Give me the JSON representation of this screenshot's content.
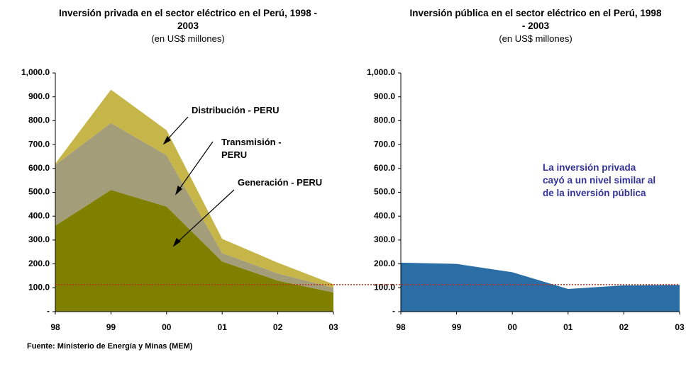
{
  "chart_data": [
    {
      "type": "stacked_area",
      "title": "Inversión privada en el sector eléctrico en el Perú, 1998 - 2003",
      "subtitle": "(en US$ millones)",
      "categories": [
        "98",
        "99",
        "00",
        "01",
        "02",
        "03"
      ],
      "series": [
        {
          "name": "Generación - PERU",
          "color": "#808000",
          "values": [
            360,
            510,
            440,
            210,
            130,
            80
          ]
        },
        {
          "name": "Transmisión - PERU",
          "color": "#a39d7a",
          "values": [
            255,
            280,
            215,
            35,
            30,
            20
          ]
        },
        {
          "name": "Distribución - PERU",
          "color": "#c6b64a",
          "values": [
            5,
            140,
            105,
            60,
            45,
            15
          ]
        }
      ],
      "ylim": [
        0,
        1000
      ],
      "yticks": [
        {
          "value": 0,
          "label": "-"
        },
        {
          "value": 100,
          "label": "100.0"
        },
        {
          "value": 200,
          "label": "200.0"
        },
        {
          "value": 300,
          "label": "300.0"
        },
        {
          "value": 400,
          "label": "400.0"
        },
        {
          "value": 500,
          "label": "500.0"
        },
        {
          "value": 600,
          "label": "600.0"
        },
        {
          "value": 700,
          "label": "700.0"
        },
        {
          "value": 800,
          "label": "800.0"
        },
        {
          "value": 900,
          "label": "900.0"
        },
        {
          "value": 1000,
          "label": "1,000.0"
        }
      ]
    },
    {
      "type": "area",
      "title": "Inversión pública en el sector eléctrico en el Perú, 1998 - 2003",
      "subtitle": "(en US$ millones)",
      "categories": [
        "98",
        "99",
        "00",
        "01",
        "02",
        "03"
      ],
      "color": "#2b6ea6",
      "values": [
        205,
        200,
        165,
        95,
        110,
        112
      ],
      "ylim": [
        0,
        1000
      ],
      "yticks": [
        {
          "value": 0,
          "label": "-"
        },
        {
          "value": 100,
          "label": "100.0"
        },
        {
          "value": 200,
          "label": "200.0"
        },
        {
          "value": 300,
          "label": "300.0"
        },
        {
          "value": 400,
          "label": "400.0"
        },
        {
          "value": 500,
          "label": "500.0"
        },
        {
          "value": 600,
          "label": "600.0"
        },
        {
          "value": 700,
          "label": "700.0"
        },
        {
          "value": 800,
          "label": "800.0"
        },
        {
          "value": 900,
          "label": "900.0"
        },
        {
          "value": 1000,
          "label": "1,000.0"
        }
      ],
      "annotation": "La inversión privada cayó a un nivel similar al de la inversión pública"
    }
  ],
  "reference_value": 113,
  "source": "Fuente: Ministerio de Energía y Minas (MEM)"
}
